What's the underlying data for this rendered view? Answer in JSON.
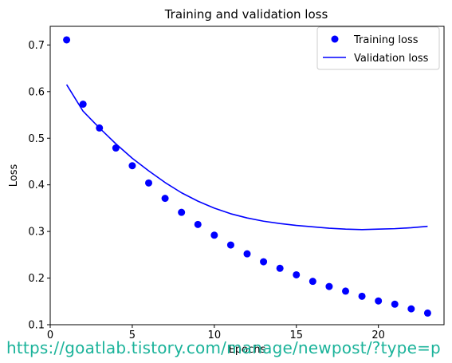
{
  "chart_data": {
    "type": "scatter+line",
    "title": "Training and validation loss",
    "xlabel": "Epochs",
    "ylabel": "Loss",
    "xlim": [
      0,
      24
    ],
    "ylim": [
      0.1,
      0.74
    ],
    "xticks": [
      0,
      5,
      10,
      15,
      20
    ],
    "yticks": [
      0.1,
      0.2,
      0.3,
      0.4,
      0.5,
      0.6,
      0.7
    ],
    "grid": false,
    "legend_position": "top-right",
    "x": [
      1,
      2,
      3,
      4,
      5,
      6,
      7,
      8,
      9,
      10,
      11,
      12,
      13,
      14,
      15,
      16,
      17,
      18,
      19,
      20,
      21,
      22,
      23
    ],
    "series": [
      {
        "name": "Training loss",
        "kind": "scatter",
        "color": "#0000ff",
        "values": [
          0.711,
          0.573,
          0.522,
          0.479,
          0.441,
          0.404,
          0.371,
          0.341,
          0.315,
          0.292,
          0.271,
          0.252,
          0.235,
          0.221,
          0.207,
          0.193,
          0.182,
          0.172,
          0.161,
          0.151,
          0.144,
          0.134,
          0.125
        ]
      },
      {
        "name": "Validation loss",
        "kind": "line",
        "color": "#0000ff",
        "values": [
          0.615,
          0.558,
          0.522,
          0.488,
          0.457,
          0.43,
          0.405,
          0.383,
          0.365,
          0.35,
          0.338,
          0.329,
          0.322,
          0.317,
          0.313,
          0.31,
          0.307,
          0.305,
          0.304,
          0.305,
          0.306,
          0.308,
          0.311
        ]
      }
    ]
  },
  "watermark": {
    "text": "https://goatlab.tistory.com/manage/newpost/?type=p"
  }
}
